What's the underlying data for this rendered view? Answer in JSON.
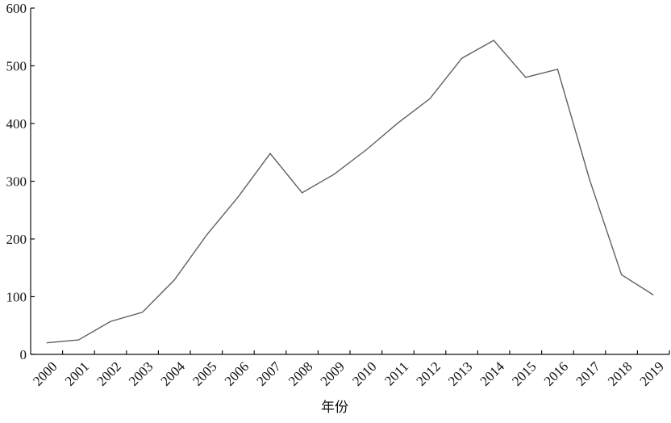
{
  "chart_data": {
    "type": "line",
    "x_label": "年份",
    "categories": [
      "2000",
      "2001",
      "2002",
      "2003",
      "2004",
      "2005",
      "2006",
      "2007",
      "2008",
      "2009",
      "2010",
      "2011",
      "2012",
      "2013",
      "2014",
      "2015",
      "2016",
      "2017",
      "2018",
      "2019"
    ],
    "values": [
      20,
      25,
      57,
      73,
      129,
      206,
      273,
      348,
      280,
      312,
      354,
      401,
      443,
      513,
      544,
      480,
      494,
      303,
      138,
      103
    ],
    "color": "#606060",
    "ylim": [
      0,
      600
    ],
    "yticks": [
      0,
      100,
      200,
      300,
      400,
      500,
      600
    ],
    "grid": false
  }
}
